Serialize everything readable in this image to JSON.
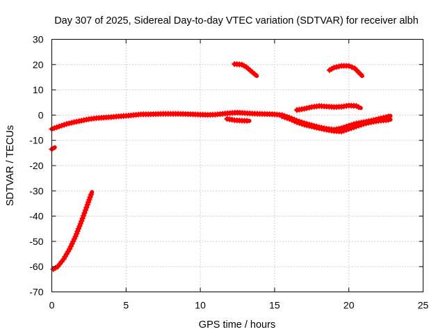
{
  "chart_data": {
    "type": "scatter",
    "title": "Day 307 of 2025, Sidereal Day-to-day VTEC variation (SDTVAR) for receiver albh",
    "xlabel": "GPS time / hours",
    "ylabel": "SDTVAR / TECUs",
    "xlim": [
      0,
      25
    ],
    "ylim": [
      -70,
      30
    ],
    "xticks": [
      0,
      5,
      10,
      15,
      20,
      25
    ],
    "yticks": [
      -70,
      -60,
      -50,
      -40,
      -30,
      -20,
      -10,
      0,
      10,
      20,
      30
    ],
    "grid": true,
    "marker_color": "#ff0000",
    "series": [
      {
        "name": "arc-main-left",
        "points": [
          [
            0,
            -5.5
          ],
          [
            0.5,
            -4.5
          ],
          [
            1.0,
            -3.5
          ],
          [
            1.5,
            -2.8
          ],
          [
            2.0,
            -2.2
          ],
          [
            2.5,
            -1.6
          ],
          [
            3.0,
            -1.2
          ],
          [
            3.5,
            -1.0
          ],
          [
            4.0,
            -0.8
          ],
          [
            4.5,
            -0.5
          ],
          [
            5.0,
            -0.3
          ],
          [
            5.5,
            0
          ],
          [
            6.0,
            0.3
          ],
          [
            6.5,
            0.3
          ],
          [
            7.0,
            0.4
          ],
          [
            7.5,
            0.5
          ],
          [
            8.0,
            0.5
          ],
          [
            8.5,
            0.5
          ],
          [
            9.0,
            0.4
          ],
          [
            9.5,
            0.3
          ],
          [
            10.0,
            0.2
          ],
          [
            10.5,
            0.1
          ],
          [
            11.0,
            0.2
          ],
          [
            11.5,
            0.5
          ],
          [
            12.0,
            0.8
          ],
          [
            12.5,
            1.0
          ],
          [
            13.0,
            0.8
          ],
          [
            13.5,
            0.6
          ],
          [
            14.0,
            0.5
          ],
          [
            14.5,
            0.4
          ],
          [
            15.0,
            0.3
          ]
        ]
      },
      {
        "name": "arc-main-left-lower",
        "points": [
          [
            11.8,
            -1.5
          ],
          [
            12.3,
            -2.0
          ],
          [
            12.8,
            -2.2
          ],
          [
            13.3,
            -2.3
          ]
        ]
      },
      {
        "name": "arc-main-right-upper",
        "points": [
          [
            15.0,
            0.3
          ],
          [
            15.5,
            0
          ],
          [
            16.0,
            -1.0
          ],
          [
            16.5,
            -2.2
          ],
          [
            17.0,
            -3.2
          ],
          [
            17.5,
            -4.0
          ],
          [
            18.0,
            -4.8
          ],
          [
            18.5,
            -5.4
          ],
          [
            19.0,
            -5.8
          ],
          [
            19.5,
            -5.2
          ],
          [
            20.0,
            -4.2
          ],
          [
            20.5,
            -3.3
          ],
          [
            21.0,
            -2.8
          ],
          [
            21.5,
            -2.2
          ],
          [
            22.0,
            -1.5
          ],
          [
            22.5,
            -0.8
          ],
          [
            22.8,
            -0.3
          ]
        ]
      },
      {
        "name": "arc-main-right-lower",
        "points": [
          [
            15.5,
            -0.5
          ],
          [
            16.0,
            -1.5
          ],
          [
            16.5,
            -2.8
          ],
          [
            17.0,
            -3.8
          ],
          [
            17.5,
            -4.5
          ],
          [
            18.0,
            -5.2
          ],
          [
            18.5,
            -5.8
          ],
          [
            19.0,
            -6.3
          ],
          [
            19.5,
            -6.5
          ],
          [
            20.0,
            -5.5
          ],
          [
            20.5,
            -4.5
          ],
          [
            21.0,
            -3.5
          ],
          [
            21.5,
            -2.8
          ],
          [
            22.0,
            -2.3
          ],
          [
            22.5,
            -2.0
          ],
          [
            22.8,
            -1.8
          ]
        ]
      },
      {
        "name": "arc-upper-mid",
        "points": [
          [
            16.5,
            2.0
          ],
          [
            17.0,
            2.5
          ],
          [
            17.5,
            3.2
          ],
          [
            18.0,
            3.6
          ],
          [
            18.5,
            3.4
          ],
          [
            19.0,
            3.2
          ],
          [
            19.5,
            3.3
          ],
          [
            20.0,
            3.8
          ],
          [
            20.5,
            3.6
          ],
          [
            20.8,
            2.8
          ]
        ]
      },
      {
        "name": "arc-low-start",
        "points": [
          [
            0,
            -13.5
          ],
          [
            0.2,
            -12.8
          ]
        ]
      },
      {
        "name": "arc-descending-left",
        "points": [
          [
            0.1,
            -61.0
          ],
          [
            0.4,
            -60.0
          ],
          [
            0.8,
            -57.0
          ],
          [
            1.2,
            -53.0
          ],
          [
            1.6,
            -48.0
          ],
          [
            2.0,
            -42.0
          ],
          [
            2.4,
            -35.5
          ],
          [
            2.7,
            -30.5
          ]
        ]
      },
      {
        "name": "arc-high-mid",
        "points": [
          [
            12.3,
            20.2
          ],
          [
            12.8,
            20.0
          ],
          [
            13.1,
            19.0
          ],
          [
            13.5,
            17.0
          ],
          [
            13.8,
            15.5
          ]
        ]
      },
      {
        "name": "arc-high-right",
        "points": [
          [
            18.7,
            17.8
          ],
          [
            19.0,
            18.8
          ],
          [
            19.5,
            19.5
          ],
          [
            20.0,
            19.5
          ],
          [
            20.4,
            18.5
          ],
          [
            20.9,
            15.5
          ]
        ]
      }
    ]
  }
}
